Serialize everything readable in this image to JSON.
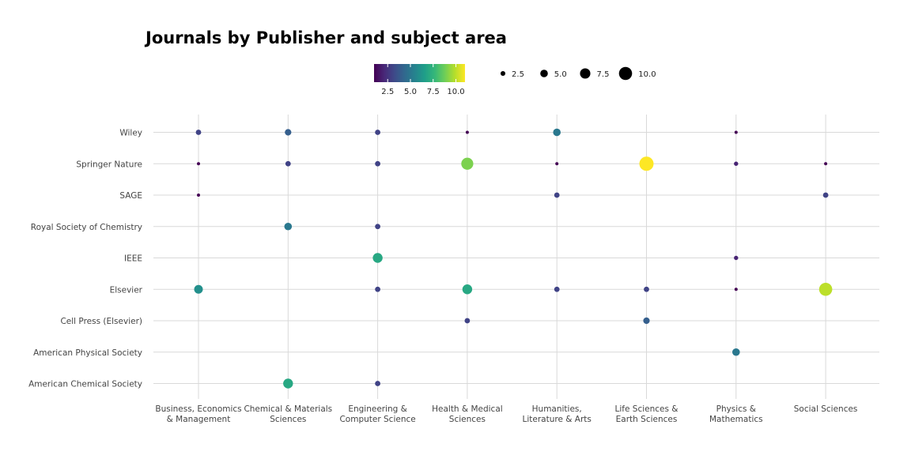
{
  "chart_data": {
    "type": "scatter",
    "title": "Journals by Publisher and subject area",
    "x_categories": [
      "Business, Economics & Management",
      "Chemical & Materials Sciences",
      "Engineering & Computer Science",
      "Health & Medical Sciences",
      "Humanities, Literature & Arts",
      "Life Sciences & Earth Sciences",
      "Physics & Mathematics",
      "Social Sciences"
    ],
    "x_tick_lines": [
      [
        "Business, Economics",
        "& Management"
      ],
      [
        "Chemical & Materials",
        "Sciences"
      ],
      [
        "Engineering &",
        "Computer Science"
      ],
      [
        "Health & Medical",
        "Sciences"
      ],
      [
        "Humanities,",
        "Literature & Arts"
      ],
      [
        "Life Sciences &",
        "Earth Sciences"
      ],
      [
        "Physics &",
        "Mathematics"
      ],
      [
        "Social Sciences"
      ]
    ],
    "y_categories": [
      "Wiley",
      "Springer Nature",
      "SAGE",
      "Royal Society of Chemistry",
      "IEEE",
      "Elsevier",
      "Cell Press (Elsevier)",
      "American Physical Society",
      "American Chemical Society"
    ],
    "points": [
      {
        "x": "Business, Economics & Management",
        "y": "Wiley",
        "value": 3
      },
      {
        "x": "Chemical & Materials Sciences",
        "y": "Wiley",
        "value": 4
      },
      {
        "x": "Engineering & Computer Science",
        "y": "Wiley",
        "value": 3
      },
      {
        "x": "Health & Medical Sciences",
        "y": "Wiley",
        "value": 1
      },
      {
        "x": "Humanities, Literature & Arts",
        "y": "Wiley",
        "value": 5
      },
      {
        "x": "Physics & Mathematics",
        "y": "Wiley",
        "value": 1
      },
      {
        "x": "Business, Economics & Management",
        "y": "Springer Nature",
        "value": 1
      },
      {
        "x": "Chemical & Materials Sciences",
        "y": "Springer Nature",
        "value": 3
      },
      {
        "x": "Engineering & Computer Science",
        "y": "Springer Nature",
        "value": 3
      },
      {
        "x": "Health & Medical Sciences",
        "y": "Springer Nature",
        "value": 9
      },
      {
        "x": "Humanities, Literature & Arts",
        "y": "Springer Nature",
        "value": 1
      },
      {
        "x": "Life Sciences & Earth Sciences",
        "y": "Springer Nature",
        "value": 11
      },
      {
        "x": "Physics & Mathematics",
        "y": "Springer Nature",
        "value": 2
      },
      {
        "x": "Social Sciences",
        "y": "Springer Nature",
        "value": 1
      },
      {
        "x": "Business, Economics & Management",
        "y": "SAGE",
        "value": 1
      },
      {
        "x": "Humanities, Literature & Arts",
        "y": "SAGE",
        "value": 3
      },
      {
        "x": "Social Sciences",
        "y": "SAGE",
        "value": 3
      },
      {
        "x": "Chemical & Materials Sciences",
        "y": "Royal Society of Chemistry",
        "value": 5
      },
      {
        "x": "Engineering & Computer Science",
        "y": "Royal Society of Chemistry",
        "value": 3
      },
      {
        "x": "Engineering & Computer Science",
        "y": "IEEE",
        "value": 7
      },
      {
        "x": "Physics & Mathematics",
        "y": "IEEE",
        "value": 2
      },
      {
        "x": "Business, Economics & Management",
        "y": "Elsevier",
        "value": 6
      },
      {
        "x": "Engineering & Computer Science",
        "y": "Elsevier",
        "value": 3
      },
      {
        "x": "Health & Medical Sciences",
        "y": "Elsevier",
        "value": 7
      },
      {
        "x": "Humanities, Literature & Arts",
        "y": "Elsevier",
        "value": 3
      },
      {
        "x": "Life Sciences & Earth Sciences",
        "y": "Elsevier",
        "value": 3
      },
      {
        "x": "Physics & Mathematics",
        "y": "Elsevier",
        "value": 1
      },
      {
        "x": "Social Sciences",
        "y": "Elsevier",
        "value": 10
      },
      {
        "x": "Health & Medical Sciences",
        "y": "Cell Press (Elsevier)",
        "value": 3
      },
      {
        "x": "Life Sciences & Earth Sciences",
        "y": "Cell Press (Elsevier)",
        "value": 4
      },
      {
        "x": "Physics & Mathematics",
        "y": "American Physical Society",
        "value": 5
      },
      {
        "x": "Chemical & Materials Sciences",
        "y": "American Chemical Society",
        "value": 7
      },
      {
        "x": "Engineering & Computer Science",
        "y": "American Chemical Society",
        "value": 3
      }
    ],
    "color_legend": {
      "ticks": [
        "2.5",
        "5.0",
        "7.5",
        "10.0"
      ],
      "tick_values": [
        2.5,
        5.0,
        7.5,
        10.0
      ],
      "range": [
        1,
        11
      ],
      "palette": [
        "#440154",
        "#482878",
        "#3e4a89",
        "#31688e",
        "#26828e",
        "#1f9e89",
        "#35b779",
        "#6ece58",
        "#b5de2b",
        "#fde725"
      ]
    },
    "size_legend": {
      "ticks": [
        "2.5",
        "5.0",
        "7.5",
        "10.0"
      ],
      "tick_values": [
        2.5,
        5.0,
        7.5,
        10.0
      ],
      "range": [
        1,
        11
      ]
    },
    "grid": true,
    "legend_position": "top"
  }
}
